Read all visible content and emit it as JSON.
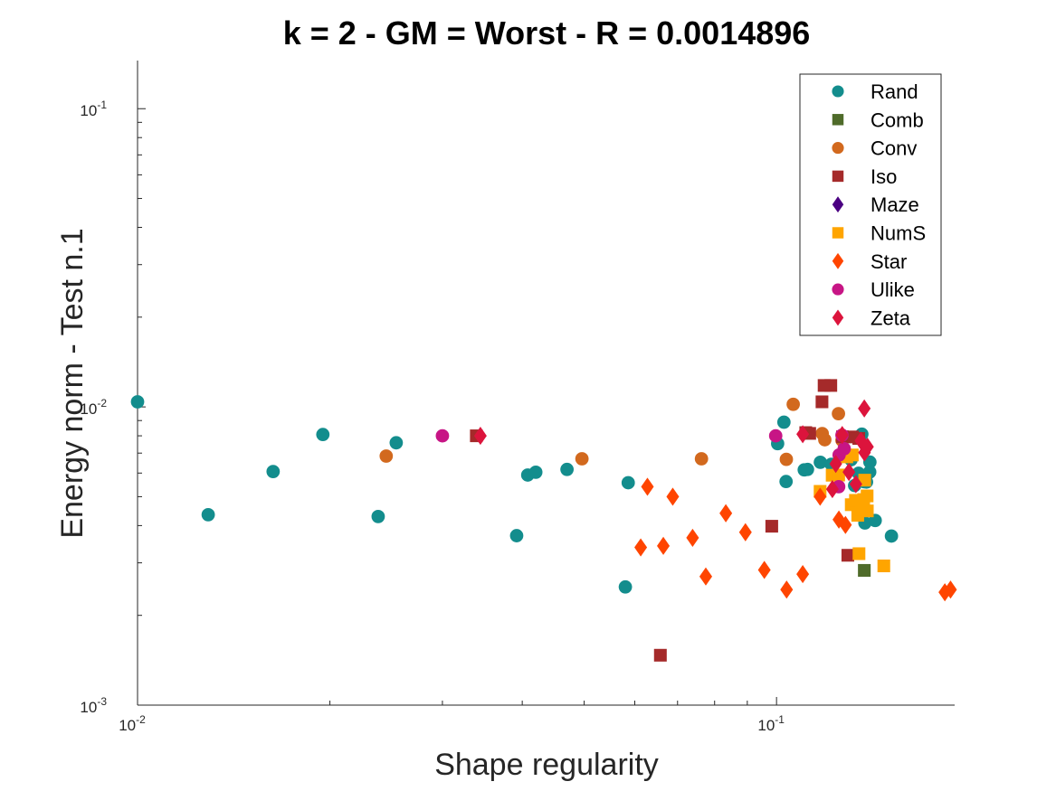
{
  "chart_data": {
    "type": "scatter",
    "title": "k = 2 - GM = Worst - R = 0.0014896",
    "xlabel": "Shape regularity",
    "ylabel": "Energy norm - Test n.1",
    "xscale": "log",
    "yscale": "log",
    "xlim": [
      0.01,
      0.19
    ],
    "ylim": [
      0.001,
      0.145
    ],
    "xticks": [
      {
        "value": 0.01,
        "base": "10",
        "exp": "-2"
      },
      {
        "value": 0.1,
        "base": "10",
        "exp": "-1"
      }
    ],
    "yticks": [
      {
        "value": 0.001,
        "base": "10",
        "exp": "-3"
      },
      {
        "value": 0.01,
        "base": "10",
        "exp": "-2"
      },
      {
        "value": 0.1,
        "base": "10",
        "exp": "-1"
      }
    ],
    "legend_position": "top-right",
    "series": [
      {
        "name": "Rand",
        "marker": "circle",
        "color": "#138D8D",
        "points": [
          [
            0.01,
            0.0104
          ],
          [
            0.0129,
            0.00435
          ],
          [
            0.0163,
            0.00607
          ],
          [
            0.0195,
            0.00808
          ],
          [
            0.0238,
            0.00429
          ],
          [
            0.0254,
            0.00758
          ],
          [
            0.0392,
            0.0037
          ],
          [
            0.0408,
            0.00591
          ],
          [
            0.042,
            0.00604
          ],
          [
            0.047,
            0.00617
          ],
          [
            0.058,
            0.00249
          ],
          [
            0.0586,
            0.00557
          ],
          [
            0.1004,
            0.00753
          ],
          [
            0.1027,
            0.00889
          ],
          [
            0.1035,
            0.00562
          ],
          [
            0.1105,
            0.00615
          ],
          [
            0.1118,
            0.00617
          ],
          [
            0.1171,
            0.00652
          ],
          [
            0.1218,
            0.00642
          ],
          [
            0.1308,
            0.00665
          ],
          [
            0.1325,
            0.00545
          ],
          [
            0.1344,
            0.00599
          ],
          [
            0.136,
            0.0081
          ],
          [
            0.1372,
            0.00561
          ],
          [
            0.1375,
            0.00408
          ],
          [
            0.1383,
            0.0056
          ],
          [
            0.1399,
            0.00605
          ],
          [
            0.14,
            0.00653
          ],
          [
            0.1427,
            0.00416
          ],
          [
            0.1513,
            0.00369
          ]
        ]
      },
      {
        "name": "Comb",
        "marker": "square",
        "color": "#4F6B2A",
        "points": [
          [
            0.1372,
            0.00283
          ]
        ]
      },
      {
        "name": "Conv",
        "marker": "circle",
        "color": "#D2691E",
        "points": [
          [
            0.0245,
            0.00684
          ],
          [
            0.0496,
            0.0067
          ],
          [
            0.0763,
            0.0067
          ],
          [
            0.1036,
            0.00667
          ],
          [
            0.1062,
            0.0102
          ],
          [
            0.1179,
            0.00814
          ],
          [
            0.119,
            0.00776
          ],
          [
            0.125,
            0.00949
          ],
          [
            0.1266,
            0.00773
          ]
        ]
      },
      {
        "name": "Iso",
        "marker": "square",
        "color": "#A52A2A",
        "points": [
          [
            0.0339,
            0.008
          ],
          [
            0.0658,
            0.00147
          ],
          [
            0.0983,
            0.00398
          ],
          [
            0.1111,
            0.0082
          ],
          [
            0.1127,
            0.00815
          ],
          [
            0.1178,
            0.0104
          ],
          [
            0.1187,
            0.0118
          ],
          [
            0.1216,
            0.0118
          ],
          [
            0.1268,
            0.00794
          ],
          [
            0.1293,
            0.00318
          ],
          [
            0.1315,
            0.00793
          ],
          [
            0.1345,
            0.00784
          ]
        ]
      },
      {
        "name": "Maze",
        "marker": "diamond",
        "color": "#4B0082",
        "points": []
      },
      {
        "name": "NumS",
        "marker": "square",
        "color": "#FFA500",
        "points": [
          [
            0.117,
            0.00521
          ],
          [
            0.1222,
            0.0059
          ],
          [
            0.1251,
            0.00591
          ],
          [
            0.1288,
            0.0068
          ],
          [
            0.1309,
            0.0047
          ],
          [
            0.1314,
            0.0069
          ],
          [
            0.1329,
            0.00486
          ],
          [
            0.134,
            0.00433
          ],
          [
            0.1346,
            0.00322
          ],
          [
            0.1357,
            0.00452
          ],
          [
            0.1369,
            0.00489
          ],
          [
            0.1374,
            0.00568
          ],
          [
            0.1387,
            0.00448
          ],
          [
            0.1386,
            0.00503
          ],
          [
            0.1472,
            0.00293
          ]
        ]
      },
      {
        "name": "Star",
        "marker": "diamond",
        "color": "#FF4500",
        "points": [
          [
            0.0613,
            0.00338
          ],
          [
            0.0628,
            0.0054
          ],
          [
            0.0665,
            0.00342
          ],
          [
            0.0688,
            0.005
          ],
          [
            0.0739,
            0.00364
          ],
          [
            0.0775,
            0.0027
          ],
          [
            0.0833,
            0.0044
          ],
          [
            0.0894,
            0.0038
          ],
          [
            0.0957,
            0.00284
          ],
          [
            0.1037,
            0.00244
          ],
          [
            0.1099,
            0.00275
          ],
          [
            0.117,
            0.005
          ],
          [
            0.1252,
            0.00419
          ],
          [
            0.1282,
            0.00402
          ],
          [
            0.1834,
            0.00239
          ],
          [
            0.1872,
            0.00244
          ]
        ]
      },
      {
        "name": "Ulike",
        "marker": "circle",
        "color": "#C71585",
        "points": [
          [
            0.03,
            0.008
          ],
          [
            0.0997,
            0.008
          ],
          [
            0.1251,
            0.0054
          ],
          [
            0.1253,
            0.0069
          ],
          [
            0.1266,
            0.00804
          ],
          [
            0.1276,
            0.00724
          ]
        ]
      },
      {
        "name": "Zeta",
        "marker": "diamond",
        "color": "#DC143C",
        "points": [
          [
            0.0344,
            0.008
          ],
          [
            0.1099,
            0.0081
          ],
          [
            0.1223,
            0.0053
          ],
          [
            0.1238,
            0.00644
          ],
          [
            0.1267,
            0.00805
          ],
          [
            0.1298,
            0.00605
          ],
          [
            0.1331,
            0.00551
          ],
          [
            0.1355,
            0.0077
          ],
          [
            0.1372,
            0.00988
          ],
          [
            0.1373,
            0.00703
          ],
          [
            0.1388,
            0.00735
          ]
        ]
      }
    ]
  }
}
